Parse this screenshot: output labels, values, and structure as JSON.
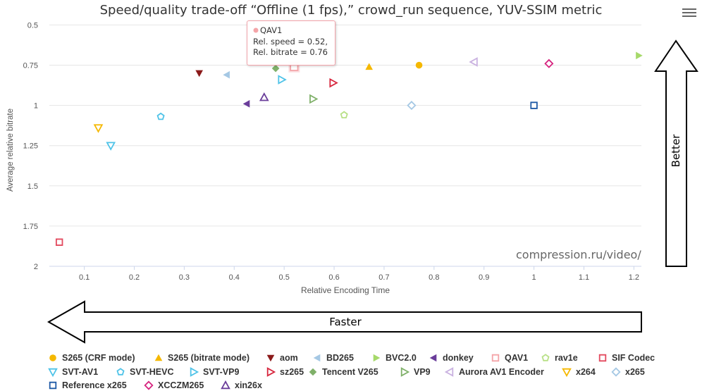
{
  "menu": {
    "icon": "hamburger-menu-icon"
  },
  "chart_data": {
    "type": "scatter",
    "title": "Speed/quality trade-off “Offline (1 fps),” crowd_run sequence, YUV-SSIM metric",
    "xlabel": "Relative Encoding Time",
    "ylabel": "Average relative bitrate",
    "xlim": [
      0.03,
      1.215
    ],
    "ylim": [
      2.0,
      0.45
    ],
    "y_reversed": true,
    "grid": true,
    "x_ticks": [
      {
        "v": 0.1,
        "label": "0.1"
      },
      {
        "v": 0.2,
        "label": "0.2"
      },
      {
        "v": 0.3,
        "label": "0.3"
      },
      {
        "v": 0.4,
        "label": "0.4"
      },
      {
        "v": 0.5,
        "label": "0.5"
      },
      {
        "v": 0.6,
        "label": "0.6"
      },
      {
        "v": 0.7,
        "label": "0.7"
      },
      {
        "v": 0.8,
        "label": "0.8"
      },
      {
        "v": 0.9,
        "label": "0.9"
      },
      {
        "v": 1.0,
        "label": "1"
      },
      {
        "v": 1.1,
        "label": "1.1"
      },
      {
        "v": 1.2,
        "label": "1.2"
      }
    ],
    "y_ticks": [
      {
        "v": 0.5,
        "label": "0.5"
      },
      {
        "v": 0.75,
        "label": "0.75"
      },
      {
        "v": 1.0,
        "label": "1"
      },
      {
        "v": 1.25,
        "label": "1.25"
      },
      {
        "v": 1.5,
        "label": "1.5"
      },
      {
        "v": 1.75,
        "label": "1.75"
      },
      {
        "v": 2.0,
        "label": "2"
      }
    ],
    "legend_position": "bottom",
    "series": [
      {
        "name": "S265 (CRF mode)",
        "color": "#f5b800",
        "marker": "circle",
        "x": 0.77,
        "y": 0.75
      },
      {
        "name": "S265 (bitrate mode)",
        "color": "#f5b800",
        "marker": "triangle-up",
        "x": 0.67,
        "y": 0.76
      },
      {
        "name": "aom",
        "color": "#8b1a1a",
        "marker": "triangle-down",
        "x": 0.33,
        "y": 0.8
      },
      {
        "name": "BD265",
        "color": "#a5c8e4",
        "marker": "triangle-left",
        "x": 0.385,
        "y": 0.81
      },
      {
        "name": "BVC2.0",
        "color": "#a6d96a",
        "marker": "triangle-right",
        "x": 1.21,
        "y": 0.69
      },
      {
        "name": "donkey",
        "color": "#6a3d9a",
        "marker": "triangle-left",
        "x": 0.425,
        "y": 0.99
      },
      {
        "name": "QAV1",
        "color": "#f4a4a8",
        "marker": "square-open",
        "x": 0.52,
        "y": 0.76
      },
      {
        "name": "rav1e",
        "color": "#b8e086",
        "marker": "pentagon-open",
        "x": 0.62,
        "y": 1.06
      },
      {
        "name": "SIF Codec",
        "color": "#e34a5f",
        "marker": "square-open",
        "x": 0.05,
        "y": 1.85
      },
      {
        "name": "SVT-AV1",
        "color": "#4fc3e8",
        "marker": "triangle-down-open",
        "x": 0.153,
        "y": 1.25
      },
      {
        "name": "SVT-HEVC",
        "color": "#4fc3e8",
        "marker": "pentagon-open",
        "x": 0.253,
        "y": 1.07
      },
      {
        "name": "SVT-VP9",
        "color": "#4fc3e8",
        "marker": "triangle-right-open",
        "x": 0.495,
        "y": 0.84
      },
      {
        "name": "sz265",
        "color": "#d7263d",
        "marker": "triangle-right-open",
        "x": 0.598,
        "y": 0.86
      },
      {
        "name": "Tencent V265",
        "color": "#7fb069",
        "marker": "diamond",
        "x": 0.483,
        "y": 0.77
      },
      {
        "name": "VP9",
        "color": "#7fb069",
        "marker": "triangle-right-open",
        "x": 0.558,
        "y": 0.96
      },
      {
        "name": "Aurora AV1 Encoder",
        "color": "#c9b1e0",
        "marker": "triangle-left-open",
        "x": 0.88,
        "y": 0.73
      },
      {
        "name": "x264",
        "color": "#f5b800",
        "marker": "triangle-down-open",
        "x": 0.128,
        "y": 1.14
      },
      {
        "name": "x265",
        "color": "#a5c8e4",
        "marker": "diamond-open",
        "x": 0.755,
        "y": 1.0
      },
      {
        "name": "Reference x265",
        "color": "#1f5aa6",
        "marker": "square-open",
        "x": 1.0,
        "y": 1.0
      },
      {
        "name": "XCCZM265",
        "color": "#d6247f",
        "marker": "diamond-open",
        "x": 1.03,
        "y": 0.74
      },
      {
        "name": "xin26x",
        "color": "#6a3d9a",
        "marker": "triangle-up-open",
        "x": 0.46,
        "y": 0.95
      }
    ],
    "annotations": {
      "watermark": "compression.ru/video/",
      "better_label": "Better",
      "faster_label": "Faster"
    },
    "tooltip": {
      "series": "QAV1",
      "line1": "Rel. speed = 0.52,",
      "line2": "Rel. bitrate = 0.76"
    }
  }
}
